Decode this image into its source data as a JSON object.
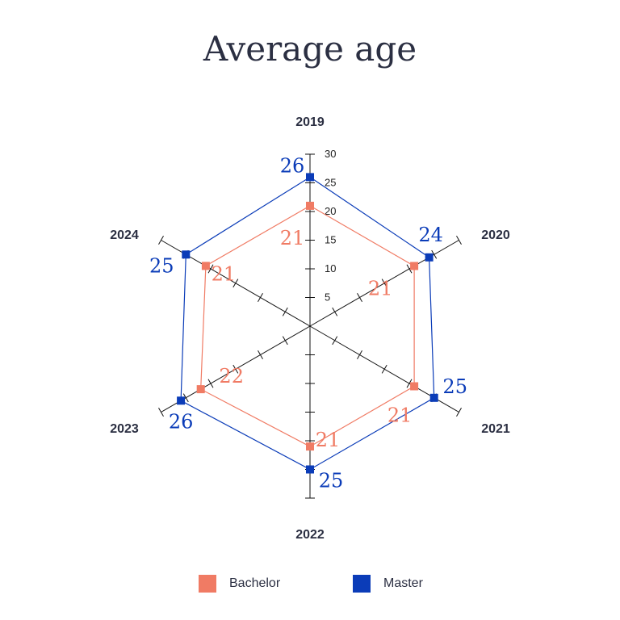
{
  "chart_data": {
    "type": "radar",
    "title": "Average age",
    "categories": [
      "2019",
      "2020",
      "2021",
      "2022",
      "2023",
      "2024"
    ],
    "radial_range": [
      0,
      30
    ],
    "radial_ticks": [
      5,
      10,
      15,
      20,
      25,
      30
    ],
    "series": [
      {
        "name": "Bachelor",
        "color": "#f07b64",
        "values": [
          21,
          21,
          21,
          21,
          22,
          21
        ]
      },
      {
        "name": "Master",
        "color": "#0b3cb8",
        "values": [
          26,
          24,
          25,
          25,
          26,
          25
        ]
      }
    ],
    "legend": "bottom"
  }
}
